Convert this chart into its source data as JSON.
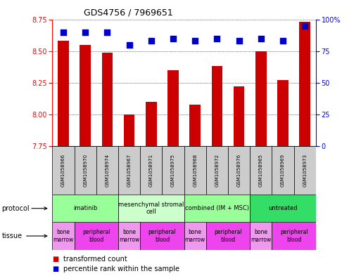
{
  "title": "GDS4756 / 7969651",
  "samples": [
    "GSM1058966",
    "GSM1058970",
    "GSM1058974",
    "GSM1058967",
    "GSM1058971",
    "GSM1058975",
    "GSM1058968",
    "GSM1058972",
    "GSM1058976",
    "GSM1058965",
    "GSM1058969",
    "GSM1058973"
  ],
  "transformed_count": [
    8.58,
    8.55,
    8.49,
    8.0,
    8.1,
    8.35,
    8.08,
    8.38,
    8.22,
    8.5,
    8.27,
    8.73
  ],
  "percentile_rank": [
    90,
    90,
    90,
    80,
    83,
    85,
    83,
    85,
    83,
    85,
    83,
    95
  ],
  "ylim_left": [
    7.75,
    8.75
  ],
  "ylim_right": [
    0,
    100
  ],
  "yticks_left": [
    7.75,
    8.0,
    8.25,
    8.5,
    8.75
  ],
  "yticks_right": [
    0,
    25,
    50,
    75,
    100
  ],
  "ytick_labels_right": [
    "0",
    "25",
    "50",
    "75",
    "100%"
  ],
  "bar_color": "#cc0000",
  "dot_color": "#0000cc",
  "grid_color": "#000000",
  "protocols": [
    {
      "label": "imatinib",
      "start": 0,
      "end": 3,
      "color": "#99ff99"
    },
    {
      "label": "mesenchymal stromal\ncell",
      "start": 3,
      "end": 6,
      "color": "#ccffcc"
    },
    {
      "label": "combined (IM + MSC)",
      "start": 6,
      "end": 9,
      "color": "#99ff99"
    },
    {
      "label": "untreated",
      "start": 9,
      "end": 12,
      "color": "#33dd66"
    }
  ],
  "tissues": [
    {
      "label": "bone\nmarrow",
      "start": 0,
      "end": 1,
      "color": "#ee99ee"
    },
    {
      "label": "peripheral\nblood",
      "start": 1,
      "end": 3,
      "color": "#ee44ee"
    },
    {
      "label": "bone\nmarrow",
      "start": 3,
      "end": 4,
      "color": "#ee99ee"
    },
    {
      "label": "peripheral\nblood",
      "start": 4,
      "end": 6,
      "color": "#ee44ee"
    },
    {
      "label": "bone\nmarrow",
      "start": 6,
      "end": 7,
      "color": "#ee99ee"
    },
    {
      "label": "peripheral\nblood",
      "start": 7,
      "end": 9,
      "color": "#ee44ee"
    },
    {
      "label": "bone\nmarrow",
      "start": 9,
      "end": 10,
      "color": "#ee99ee"
    },
    {
      "label": "peripheral\nblood",
      "start": 10,
      "end": 12,
      "color": "#ee44ee"
    }
  ],
  "protocol_label": "protocol",
  "tissue_label": "tissue",
  "legend_bar": "transformed count",
  "legend_dot": "percentile rank within the sample",
  "bar_width": 0.5,
  "dot_size": 40,
  "background_color": "#ffffff",
  "sample_box_color": "#cccccc",
  "fig_width": 5.13,
  "fig_height": 3.93,
  "dpi": 100
}
